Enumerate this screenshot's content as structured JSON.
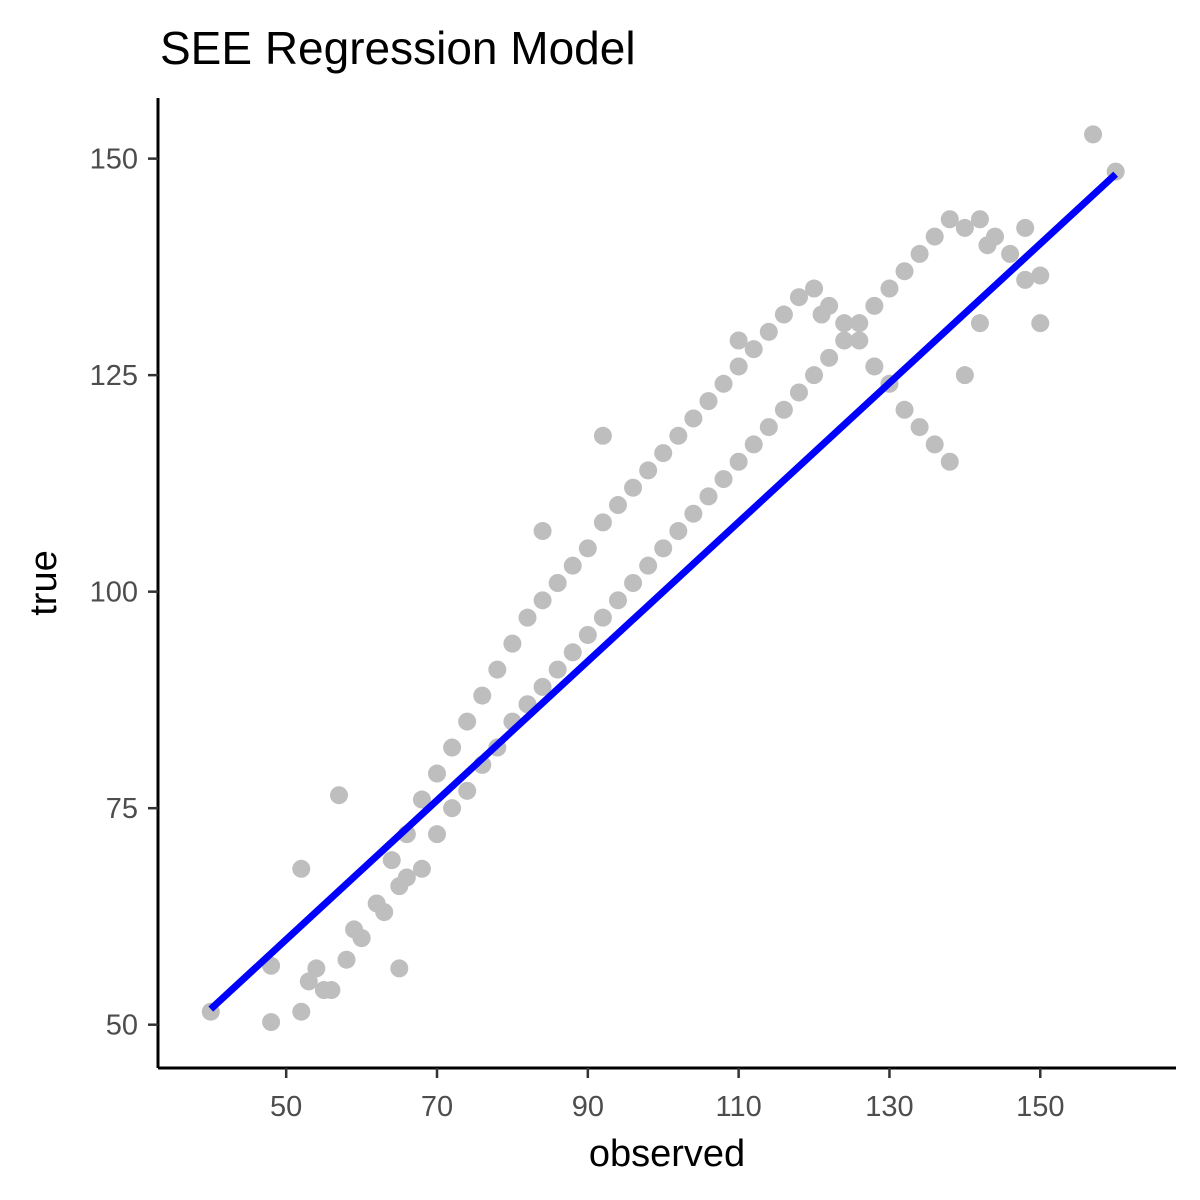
{
  "chart_data": {
    "type": "scatter",
    "title": "SEE Regression Model",
    "xlabel": "observed",
    "ylabel": "true",
    "xlim": [
      33,
      168
    ],
    "ylim": [
      45,
      157
    ],
    "x_ticks": [
      50,
      70,
      90,
      110,
      130,
      150
    ],
    "y_ticks": [
      50,
      75,
      100,
      125,
      150
    ],
    "grid": false,
    "legend": "none",
    "point_color": "#bebebe",
    "line_color": "#0000ff",
    "series": [
      {
        "kind": "points",
        "x": [
          40,
          48,
          48,
          52,
          52,
          53,
          54,
          55,
          56,
          57,
          58,
          59,
          60,
          63,
          65,
          65,
          66,
          68,
          70,
          72,
          74,
          76,
          78,
          80,
          82,
          84,
          86,
          88,
          90,
          92,
          94,
          96,
          98,
          100,
          102,
          104,
          106,
          108,
          110,
          112,
          114,
          116,
          118,
          120,
          122,
          124,
          126,
          128,
          130,
          132,
          134,
          136,
          138,
          140,
          142,
          144,
          146,
          148,
          150,
          157,
          160,
          60,
          62,
          64,
          66,
          68,
          70,
          72,
          74,
          76,
          78,
          80,
          82,
          84,
          86,
          88,
          90,
          92,
          94,
          96,
          98,
          100,
          102,
          104,
          106,
          108,
          110,
          112,
          114,
          116,
          118,
          120,
          122,
          124,
          126,
          128,
          130,
          132,
          134,
          136,
          138,
          140,
          142,
          143,
          148,
          150,
          84,
          92,
          110,
          121
        ],
        "y": [
          51.5,
          56.8,
          50.3,
          68,
          51.5,
          55,
          56.5,
          54,
          54,
          76.5,
          57.5,
          61,
          60,
          63,
          66,
          56.5,
          67,
          68,
          72,
          75,
          77,
          80,
          82,
          85,
          87,
          89,
          91,
          93,
          95,
          97,
          99,
          101,
          103,
          105,
          107,
          109,
          111,
          113,
          115,
          117,
          119,
          121,
          123,
          125,
          127,
          129,
          131,
          133,
          135,
          137,
          139,
          141,
          143,
          142,
          143,
          141,
          139,
          142,
          131,
          152.8,
          148.5,
          60,
          64,
          69,
          72,
          76,
          79,
          82,
          85,
          88,
          91,
          94,
          97,
          99,
          101,
          103,
          105,
          108,
          110,
          112,
          114,
          116,
          118,
          120,
          122,
          124,
          126,
          128,
          130,
          132,
          134,
          135,
          133,
          131,
          129,
          126,
          124,
          121,
          119,
          117,
          115,
          125,
          131,
          140,
          136,
          136.5,
          107,
          118,
          129,
          132
        ]
      },
      {
        "kind": "regression-line",
        "x": [
          40,
          160
        ],
        "y": [
          51.8,
          148.2
        ]
      }
    ]
  }
}
